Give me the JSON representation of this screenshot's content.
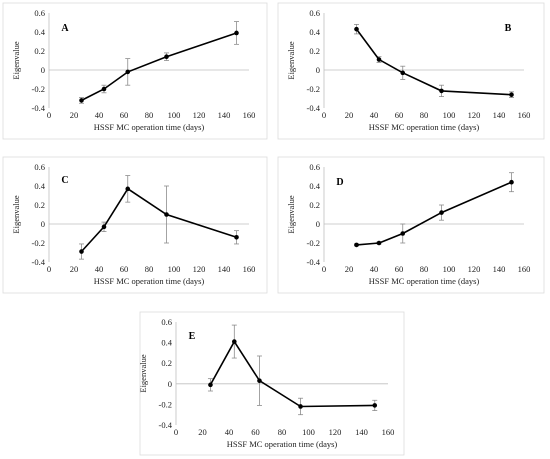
{
  "chart_data": [
    {
      "type": "line",
      "panel_label": "A",
      "xlabel": "HSSF MC operation time (days)",
      "ylabel": "Eigenvalue",
      "xlim": [
        0,
        160
      ],
      "ylim": [
        -0.4,
        0.6
      ],
      "xticks": [
        "0",
        "20",
        "40",
        "60",
        "80",
        "100",
        "120",
        "140",
        "160"
      ],
      "yticks": [
        "-0.4",
        "-0.2",
        "0",
        "0.2",
        "0.4",
        "0.6"
      ],
      "x": [
        26,
        44,
        63,
        94,
        150
      ],
      "y": [
        -0.32,
        -0.2,
        -0.02,
        0.14,
        0.39
      ],
      "err": [
        0.03,
        0.04,
        0.14,
        0.04,
        0.12
      ]
    },
    {
      "type": "line",
      "panel_label": "B",
      "xlabel": "HSSF MC operation time (days)",
      "ylabel": "Eigenvalue",
      "xlim": [
        0,
        160
      ],
      "ylim": [
        -0.4,
        0.6
      ],
      "xticks": [
        "0",
        "20",
        "40",
        "60",
        "80",
        "100",
        "120",
        "140",
        "160"
      ],
      "yticks": [
        "-0.4",
        "-0.2",
        "0",
        "0.2",
        "0.4",
        "0.6"
      ],
      "x": [
        26,
        44,
        63,
        94,
        150
      ],
      "y": [
        0.43,
        0.11,
        -0.03,
        -0.22,
        -0.26
      ],
      "err": [
        0.05,
        0.03,
        0.07,
        0.06,
        0.03
      ]
    },
    {
      "type": "line",
      "panel_label": "C",
      "xlabel": "HSSF MC operation time (days)",
      "ylabel": "Eigenvalue",
      "xlim": [
        0,
        160
      ],
      "ylim": [
        -0.4,
        0.6
      ],
      "xticks": [
        "0",
        "20",
        "40",
        "60",
        "80",
        "100",
        "120",
        "140",
        "160"
      ],
      "yticks": [
        "-0.4",
        "-0.2",
        "0",
        "0.2",
        "0.4",
        "0.6"
      ],
      "x": [
        26,
        44,
        63,
        94,
        150
      ],
      "y": [
        -0.29,
        -0.03,
        0.37,
        0.1,
        -0.14
      ],
      "err": [
        0.08,
        0.05,
        0.14,
        0.3,
        0.07
      ]
    },
    {
      "type": "line",
      "panel_label": "D",
      "xlabel": "HSSF MC operation time (days)",
      "ylabel": "Eigenvalue",
      "xlim": [
        0,
        160
      ],
      "ylim": [
        -0.4,
        0.6
      ],
      "xticks": [
        "0",
        "20",
        "40",
        "60",
        "80",
        "100",
        "120",
        "140",
        "160"
      ],
      "yticks": [
        "-0.4",
        "-0.2",
        "0",
        "0.2",
        "0.4",
        "0.6"
      ],
      "x": [
        26,
        44,
        63,
        94,
        150
      ],
      "y": [
        -0.22,
        -0.2,
        -0.1,
        0.12,
        0.44
      ],
      "err": [
        0.01,
        0.01,
        0.1,
        0.08,
        0.1
      ]
    },
    {
      "type": "line",
      "panel_label": "E",
      "xlabel": "HSSF MC operation time (days)",
      "ylabel": "Eigenvalue",
      "xlim": [
        0,
        160
      ],
      "ylim": [
        -0.4,
        0.6
      ],
      "xticks": [
        "0",
        "20",
        "40",
        "60",
        "80",
        "100",
        "120",
        "140",
        "160"
      ],
      "yticks": [
        "-0.4",
        "-0.2",
        "0",
        "0.2",
        "0.4",
        "0.6"
      ],
      "x": [
        26,
        44,
        63,
        94,
        150
      ],
      "y": [
        -0.01,
        0.41,
        0.03,
        -0.22,
        -0.21
      ],
      "err": [
        0.06,
        0.16,
        0.24,
        0.08,
        0.05
      ]
    }
  ]
}
